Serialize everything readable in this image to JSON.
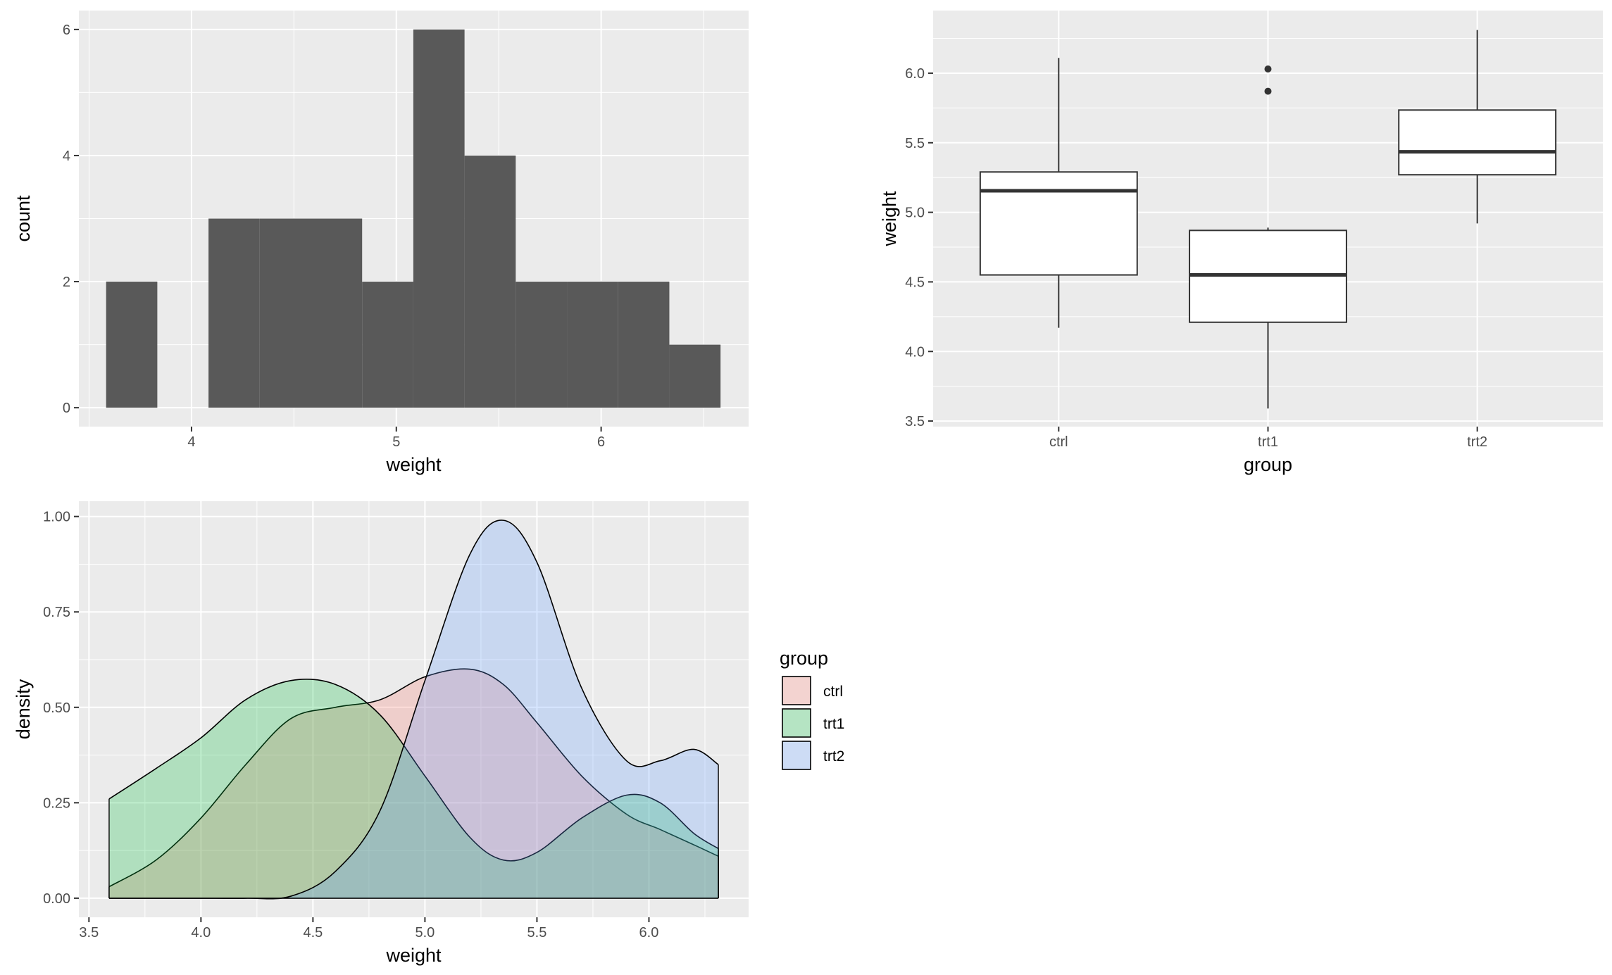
{
  "chart_data": [
    {
      "type": "histogram",
      "xlabel": "weight",
      "ylabel": "count",
      "bins": [
        {
          "x0": 3.583,
          "x1": 3.833,
          "count": 2
        },
        {
          "x0": 3.833,
          "x1": 4.083,
          "count": 0
        },
        {
          "x0": 4.083,
          "x1": 4.333,
          "count": 3
        },
        {
          "x0": 4.333,
          "x1": 4.583,
          "count": 3
        },
        {
          "x0": 4.583,
          "x1": 4.833,
          "count": 3
        },
        {
          "x0": 4.833,
          "x1": 5.083,
          "count": 2
        },
        {
          "x0": 5.083,
          "x1": 5.333,
          "count": 6
        },
        {
          "x0": 5.333,
          "x1": 5.583,
          "count": 4
        },
        {
          "x0": 5.583,
          "x1": 5.833,
          "count": 2
        },
        {
          "x0": 5.833,
          "x1": 6.083,
          "count": 2
        },
        {
          "x0": 6.083,
          "x1": 6.333,
          "count": 2
        },
        {
          "x0": 6.333,
          "x1": 6.583,
          "count": 1
        }
      ],
      "xlim": [
        3.45,
        6.72
      ],
      "ylim": [
        -0.3,
        6.3
      ],
      "x_ticks": [
        4,
        5,
        6
      ],
      "x_tick_labels": [
        "4",
        "5",
        "6"
      ],
      "y_ticks": [
        0,
        2,
        4,
        6
      ],
      "y_tick_labels": [
        "0",
        "2",
        "4",
        "6"
      ],
      "bar_color": "#595959",
      "panel_background": "#ebebeb",
      "grid": true
    },
    {
      "type": "boxplot",
      "xlabel": "group",
      "ylabel": "weight",
      "categories": [
        "ctrl",
        "trt1",
        "trt2"
      ],
      "boxes": [
        {
          "group": "ctrl",
          "min": 4.17,
          "q1": 4.55,
          "median": 5.155,
          "q3": 5.29,
          "max": 6.11,
          "outliers": []
        },
        {
          "group": "trt1",
          "min": 3.59,
          "q1": 4.21,
          "median": 4.55,
          "q3": 4.87,
          "max": 4.89,
          "outliers": [
            5.87,
            6.03
          ]
        },
        {
          "group": "trt2",
          "min": 4.92,
          "q1": 5.27,
          "median": 5.435,
          "q3": 5.735,
          "max": 6.31,
          "outliers": []
        }
      ],
      "ylim": [
        3.46,
        6.45
      ],
      "y_ticks": [
        3.5,
        4.0,
        4.5,
        5.0,
        5.5,
        6.0
      ],
      "y_tick_labels": [
        "3.5",
        "4.0",
        "4.5",
        "5.0",
        "5.5",
        "6.0"
      ],
      "panel_background": "#ebebeb",
      "grid": true
    },
    {
      "type": "area",
      "subtype": "density",
      "xlabel": "weight",
      "ylabel": "density",
      "x": [
        3.59,
        3.8,
        4.0,
        4.2,
        4.4,
        4.6,
        4.8,
        5.0,
        5.2,
        5.35,
        5.5,
        5.7,
        5.9,
        6.05,
        6.2,
        6.31
      ],
      "series": [
        {
          "name": "ctrl",
          "values": [
            0.03,
            0.1,
            0.21,
            0.35,
            0.47,
            0.5,
            0.52,
            0.58,
            0.6,
            0.56,
            0.46,
            0.32,
            0.22,
            0.18,
            0.14,
            0.11
          ]
        },
        {
          "name": "trt1",
          "values": [
            0.26,
            0.34,
            0.42,
            0.52,
            0.57,
            0.56,
            0.48,
            0.32,
            0.16,
            0.1,
            0.12,
            0.21,
            0.27,
            0.25,
            0.17,
            0.13
          ]
        },
        {
          "name": "trt2",
          "values": [
            0.0,
            0.0,
            0.0,
            0.0,
            0.005,
            0.07,
            0.23,
            0.57,
            0.9,
            0.99,
            0.88,
            0.55,
            0.36,
            0.36,
            0.39,
            0.35
          ]
        }
      ],
      "colors": {
        "ctrl": "#F8766D",
        "trt1": "#00BA38",
        "trt2": "#619CFF"
      },
      "fill_alpha": 0.25,
      "xlim": [
        3.455,
        6.445
      ],
      "ylim": [
        -0.05,
        1.04
      ],
      "x_ticks": [
        3.5,
        4.0,
        4.5,
        5.0,
        5.5,
        6.0
      ],
      "x_tick_labels": [
        "3.5",
        "4.0",
        "4.5",
        "5.0",
        "5.5",
        "6.0"
      ],
      "y_ticks": [
        0,
        0.25,
        0.5,
        0.75,
        1.0
      ],
      "y_tick_labels": [
        "0.00",
        "0.25",
        "0.50",
        "0.75",
        "1.00"
      ],
      "legend": {
        "title": "group",
        "entries": [
          "ctrl",
          "trt1",
          "trt2"
        ],
        "position": "right"
      },
      "panel_background": "#ebebeb",
      "grid": true
    }
  ]
}
